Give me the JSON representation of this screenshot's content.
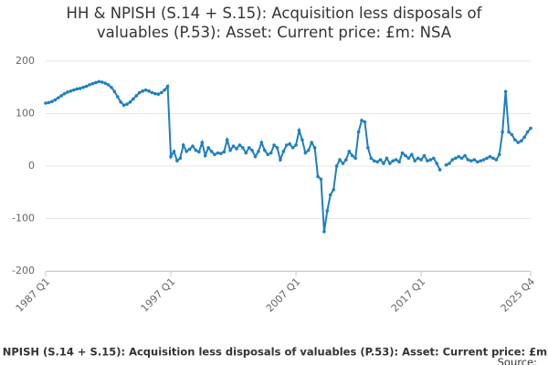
{
  "chart_data": {
    "type": "line",
    "title": "HH & NPISH (S.14 + S.15): Acquisition less disposals of valuables (P.53): Asset: Current price: £m: NSA",
    "source": "Source:",
    "categories": [
      "1987 Q1",
      null,
      null,
      null,
      null,
      null,
      null,
      null,
      null,
      null,
      null,
      null,
      null,
      null,
      null,
      null,
      null,
      null,
      null,
      null,
      null,
      null,
      null,
      null,
      null,
      null,
      null,
      null,
      null,
      null,
      null,
      null,
      null,
      null,
      null,
      null,
      null,
      null,
      null,
      null,
      "1997 Q1",
      null,
      null,
      null,
      null,
      null,
      null,
      null,
      null,
      null,
      null,
      null,
      null,
      null,
      null,
      null,
      null,
      null,
      null,
      null,
      null,
      null,
      null,
      null,
      null,
      null,
      null,
      null,
      null,
      null,
      null,
      null,
      null,
      null,
      null,
      null,
      null,
      null,
      null,
      null,
      "2007 Q1",
      null,
      null,
      null,
      null,
      null,
      null,
      null,
      null,
      null,
      null,
      null,
      null,
      null,
      null,
      null,
      null,
      null,
      null,
      null,
      null,
      null,
      null,
      null,
      null,
      null,
      null,
      null,
      null,
      null,
      null,
      null,
      null,
      null,
      null,
      null,
      null,
      null,
      null,
      null,
      "2017 Q1",
      null,
      null,
      null,
      null,
      null,
      null,
      null,
      null,
      null,
      null,
      null,
      null,
      null,
      null,
      null,
      null,
      null,
      null,
      null,
      null,
      null,
      null,
      null,
      null,
      null,
      null,
      null,
      null,
      null,
      null,
      null,
      null,
      null,
      null,
      "2025 Q4"
    ],
    "series": [
      {
        "color": "#1f7fc0",
        "values": [
          120,
          121,
          123,
          126,
          130,
          134,
          138,
          141,
          143,
          145,
          147,
          148,
          150,
          152,
          155,
          157,
          159,
          161,
          160,
          158,
          155,
          150,
          142,
          132,
          122,
          116,
          118,
          122,
          128,
          134,
          140,
          143,
          145,
          143,
          140,
          138,
          137,
          140,
          145,
          152,
          18,
          28,
          10,
          15,
          40,
          28,
          32,
          38,
          30,
          27,
          45,
          20,
          35,
          28,
          22,
          25,
          24,
          27,
          50,
          30,
          38,
          33,
          40,
          35,
          25,
          35,
          30,
          18,
          28,
          45,
          30,
          22,
          25,
          40,
          35,
          12,
          28,
          40,
          42,
          35,
          40,
          68,
          50,
          25,
          30,
          45,
          35,
          -20,
          -25,
          -125,
          -85,
          -55,
          -45,
          0,
          12,
          5,
          12,
          28,
          20,
          15,
          65,
          87,
          84,
          35,
          15,
          10,
          8,
          12,
          5,
          15,
          5,
          10,
          12,
          8,
          25,
          20,
          15,
          22,
          10,
          15,
          12,
          20,
          10,
          12,
          15,
          5,
          -7,
          null,
          2,
          5,
          12,
          15,
          18,
          15,
          20,
          12,
          10,
          12,
          8,
          10,
          12,
          15,
          18,
          15,
          12,
          22,
          65,
          142,
          65,
          60,
          50,
          45,
          48,
          55,
          65,
          72
        ]
      }
    ],
    "ylim": [
      -200,
      200
    ],
    "yticks": [
      -200,
      -100,
      0,
      100,
      200
    ],
    "grid": true
  }
}
